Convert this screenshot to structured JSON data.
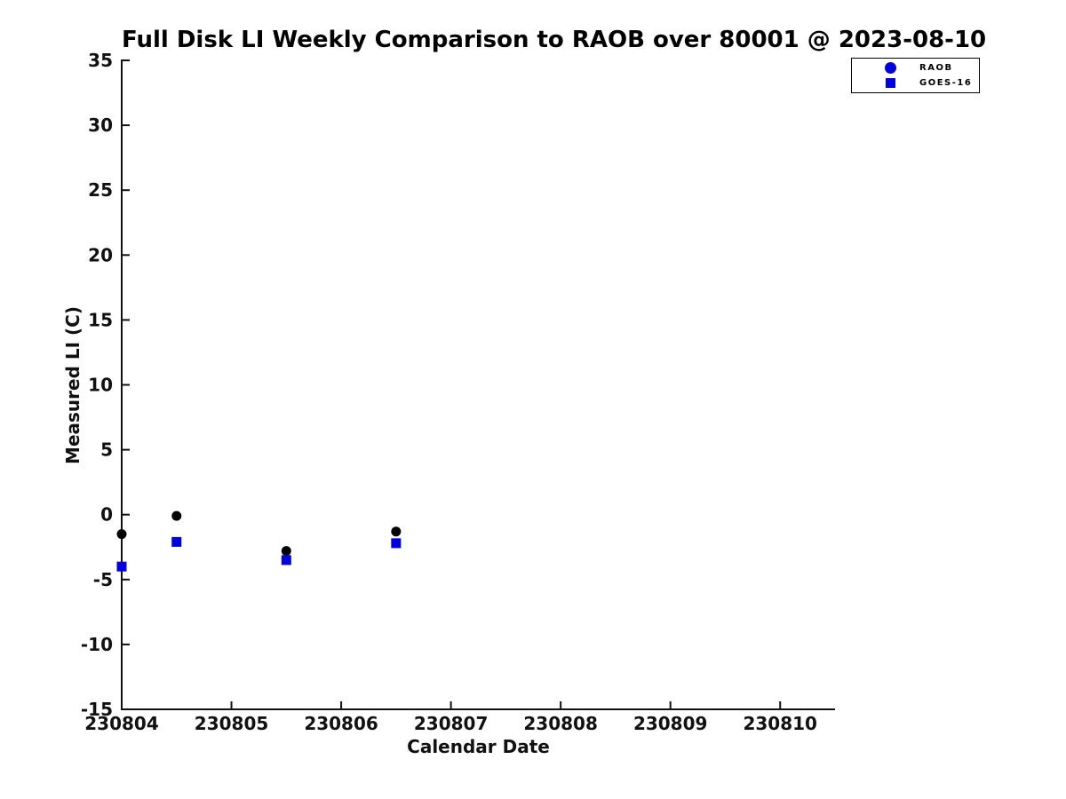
{
  "figure": {
    "background": "#ffffff"
  },
  "chart_data": {
    "type": "scatter",
    "title": "Full Disk LI Weekly Comparison to RAOB over 80001 @ 2023-08-10",
    "xlabel": "Calendar Date",
    "ylabel": "Measured LI (C)",
    "xlim": [
      230804,
      230810.5
    ],
    "ylim": [
      -15,
      35
    ],
    "xticks": [
      230804,
      230805,
      230806,
      230807,
      230808,
      230809,
      230810
    ],
    "yticks": [
      35,
      30,
      25,
      20,
      15,
      10,
      5,
      0,
      -5,
      -10,
      -15
    ],
    "grid": false,
    "tick_direction": "in",
    "axis_color": "#111111",
    "legend": {
      "position": "outside-top-right",
      "entries": [
        {
          "label": "RAOB",
          "marker": "circle",
          "color": "#0000dd"
        },
        {
          "label": "GOES-16",
          "marker": "square",
          "color": "#0000dd"
        }
      ]
    },
    "series": [
      {
        "name": "RAOB",
        "marker": "circle",
        "color": "#000000",
        "points": [
          [
            230804.0,
            -1.5
          ],
          [
            230804.5,
            -0.1
          ],
          [
            230805.5,
            -2.8
          ],
          [
            230806.5,
            -1.3
          ]
        ]
      },
      {
        "name": "GOES-16",
        "marker": "square",
        "color": "#0000dd",
        "points": [
          [
            230804.0,
            -4.0
          ],
          [
            230804.5,
            -2.1
          ],
          [
            230805.5,
            -3.5
          ],
          [
            230806.5,
            -2.2
          ]
        ]
      }
    ]
  }
}
